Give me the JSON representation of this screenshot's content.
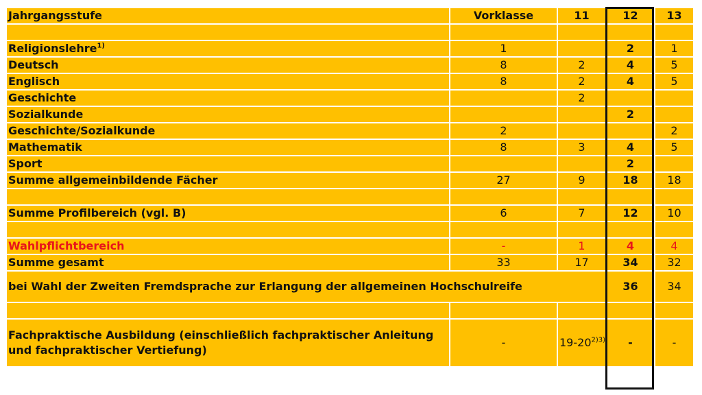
{
  "header": {
    "label": "Jahrgangsstufe",
    "columns": [
      "Vorklasse",
      "11",
      "12",
      "13"
    ]
  },
  "rows": {
    "religion": {
      "label": "Religionslehre",
      "sup": "1)",
      "v": [
        "1",
        "",
        "2",
        "1"
      ]
    },
    "deutsch": {
      "label": "Deutsch",
      "v": [
        "8",
        "2",
        "4",
        "5"
      ]
    },
    "englisch": {
      "label": "Englisch",
      "v": [
        "8",
        "2",
        "4",
        "5"
      ]
    },
    "geschichte": {
      "label": "Geschichte",
      "v": [
        "",
        "2",
        "",
        ""
      ]
    },
    "sozialkunde": {
      "label": "Sozialkunde",
      "v": [
        "",
        "",
        "2",
        ""
      ]
    },
    "geschichte_sozialkunde": {
      "label": "Geschichte/Sozialkunde",
      "v": [
        "2",
        "",
        "",
        "2"
      ]
    },
    "mathematik": {
      "label": "Mathematik",
      "v": [
        "8",
        "3",
        "4",
        "5"
      ]
    },
    "sport": {
      "label": "Sport",
      "v": [
        "",
        "",
        "2",
        ""
      ]
    },
    "summe_allgemein": {
      "label": "Summe allgemeinbildende Fächer",
      "v": [
        "27",
        "9",
        "18",
        "18"
      ]
    },
    "summe_profil": {
      "label": "Summe Profilbereich (vgl. B)",
      "v": [
        "6",
        "7",
        "12",
        "10"
      ]
    },
    "wahlpflicht": {
      "label": "Wahlpflichtbereich",
      "v": [
        "-",
        "1",
        "4",
        "4"
      ]
    },
    "summe_gesamt": {
      "label": "Summe gesamt",
      "v": [
        "33",
        "17",
        "34",
        "32"
      ]
    },
    "zweite_fremdsprache": {
      "label": "bei Wahl der Zweiten Fremdsprache zur Erlangung der allgemeinen Hochschulreife",
      "v": [
        "36",
        "34"
      ]
    },
    "fachpraktisch": {
      "label_line1": "Fachpraktische Ausbildung (einschließlich fachpraktischer Anleitung",
      "label_line2": "und fachpraktischer Vertiefung)",
      "v": [
        "-",
        "19-20",
        "-",
        "-"
      ],
      "sup": "2)3)"
    }
  },
  "colors": {
    "cell_bg": "#FFC000",
    "highlight_text": "#E8151B",
    "grid": "#FFFFFF"
  }
}
